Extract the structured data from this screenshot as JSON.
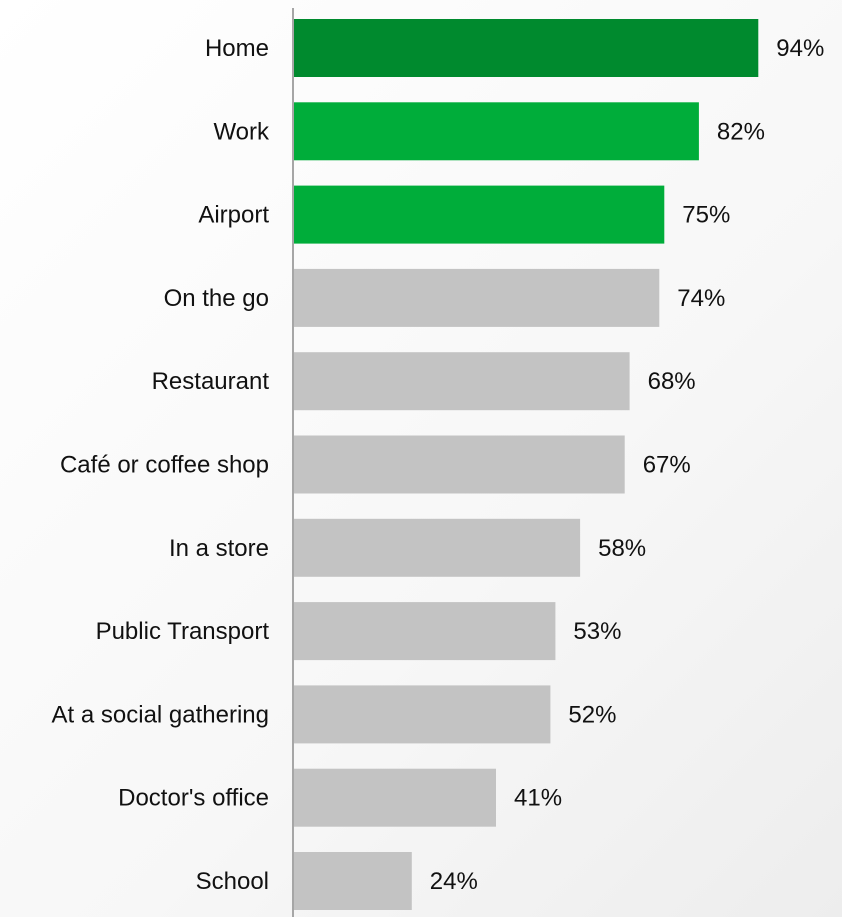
{
  "chart_data": {
    "type": "bar",
    "orientation": "horizontal",
    "categories": [
      "Home",
      "Work",
      "Airport",
      "On the go",
      "Restaurant",
      "Café or coffee shop",
      "In a store",
      "Public Transport",
      "At a social gathering",
      "Doctor's office",
      "School"
    ],
    "values": [
      94,
      82,
      75,
      74,
      68,
      67,
      58,
      53,
      52,
      41,
      24
    ],
    "value_labels": [
      "94%",
      "82%",
      "75%",
      "74%",
      "68%",
      "67%",
      "58%",
      "53%",
      "52%",
      "41%",
      "24%"
    ],
    "bar_colors": [
      "#008a2e",
      "#00ad3a",
      "#00ad3a",
      "#c3c3c3",
      "#c3c3c3",
      "#c3c3c3",
      "#c3c3c3",
      "#c3c3c3",
      "#c3c3c3",
      "#c3c3c3",
      "#c3c3c3"
    ],
    "xlim": [
      0,
      100
    ],
    "title": "",
    "xlabel": "",
    "ylabel": "",
    "grid": false,
    "legend": "none",
    "axis_color": "#a6a6a6"
  }
}
